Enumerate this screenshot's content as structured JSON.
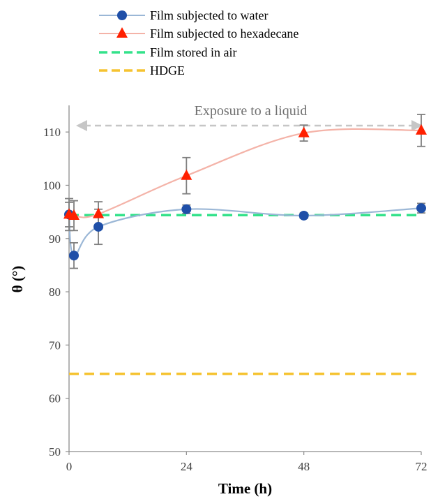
{
  "chart_data": {
    "type": "line",
    "xlabel": "Time (h)",
    "ylabel": "θ (°)",
    "xlim": [
      0,
      72
    ],
    "ylim": [
      50,
      115
    ],
    "xticks": [
      "0",
      "24",
      "48",
      "72"
    ],
    "yticks": [
      "50",
      "60",
      "70",
      "80",
      "90",
      "100",
      "110"
    ],
    "grid": false,
    "legend_position": "top",
    "annotation": "Exposure to a liquid",
    "series": [
      {
        "name": "Film subjected to water",
        "marker": "circle",
        "color": "#1f4fa8",
        "line_color": "#9bb7d6",
        "x": [
          0,
          1,
          6,
          24,
          48,
          72
        ],
        "y": [
          94.5,
          86.8,
          92.2,
          95.5,
          94.3,
          95.7
        ],
        "err": [
          2.3,
          2.4,
          3.3,
          0.8,
          0.5,
          0.9
        ]
      },
      {
        "name": "Film subjected to hexadecane",
        "marker": "triangle",
        "color": "#ff2000",
        "line_color": "#f4b3a8",
        "x": [
          0,
          1,
          6,
          24,
          48,
          72
        ],
        "y": [
          94.5,
          94.3,
          94.6,
          101.8,
          109.8,
          110.3
        ],
        "err": [
          3.0,
          2.8,
          2.3,
          3.4,
          1.5,
          3.0
        ]
      },
      {
        "name": "Film stored in air",
        "style": "dashed",
        "color": "#33e28a",
        "y": 94.4
      },
      {
        "name": "HDGE",
        "style": "dashed",
        "color": "#f5c331",
        "y": 64.6
      }
    ]
  }
}
